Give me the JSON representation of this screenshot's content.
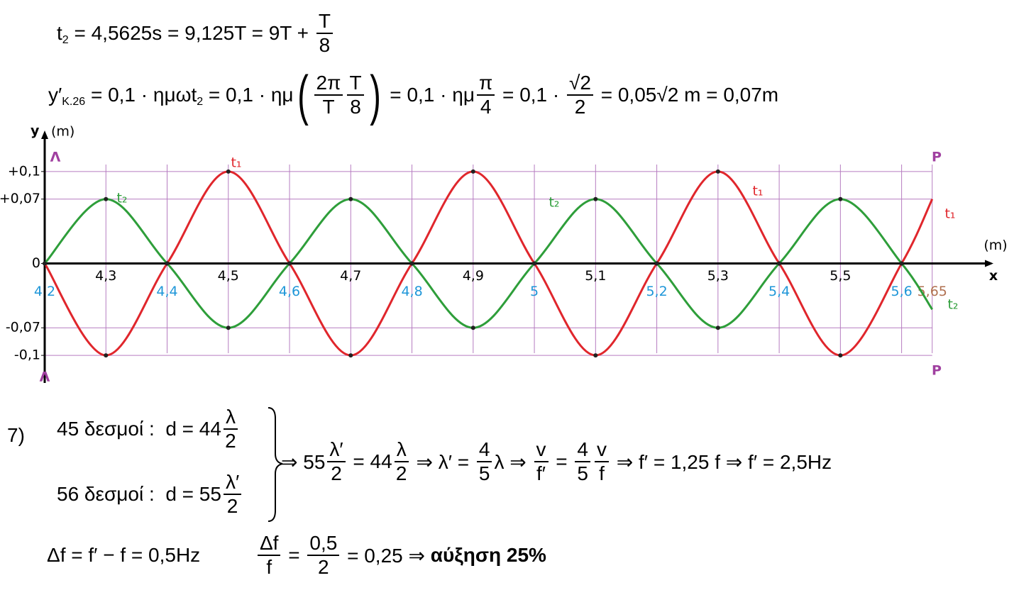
{
  "equations": [
    {
      "parts": [
        {
          "text": "t",
          "sub": "2"
        },
        {
          "text": " = 4,5625s = 9,125T = 9T + "
        },
        {
          "num": "T",
          "den": "8"
        }
      ]
    },
    {
      "parts": [
        {
          "text": "y′",
          "sub": "K.26"
        },
        {
          "text": " = 0,1 · ημωt",
          "sub": "2"
        },
        {
          "text": " = 0,1 · ημ"
        },
        {
          "paren": "("
        },
        {
          "num": "2π",
          "den": "T"
        },
        {
          "num": "T",
          "den": "8"
        },
        {
          "paren": ")"
        },
        {
          "text": " = 0,1 · ημ"
        },
        {
          "num": "π",
          "den": "4"
        },
        {
          "text": " = 0,1 · "
        },
        {
          "num": "√2",
          "den": "2"
        },
        {
          "text": " = 0,05√2 m = 0,07m"
        }
      ]
    }
  ],
  "problem_number": "7)",
  "system": {
    "rows": [
      {
        "parts": [
          {
            "text": "45 δεσμοί :  d = 44"
          },
          {
            "num": "λ",
            "den": "2"
          }
        ]
      },
      {
        "parts": [
          {
            "text": "56 δεσμοί :  d = 55"
          },
          {
            "num": "λ′",
            "den": "2"
          }
        ]
      }
    ],
    "result": {
      "parts": [
        {
          "text": "⇒ 55"
        },
        {
          "num": "λ′",
          "den": "2"
        },
        {
          "text": " = 44"
        },
        {
          "num": "λ",
          "den": "2"
        },
        {
          "text": " ⇒ λ′ = "
        },
        {
          "num": "4",
          "den": "5"
        },
        {
          "text": "λ ⇒ "
        },
        {
          "num": "v",
          "den": "f′"
        },
        {
          "text": " = "
        },
        {
          "num": "4",
          "den": "5"
        },
        {
          "num": "v",
          "den": "f"
        },
        {
          "text": " ⇒ f′ = 1,25 f ⇒ f′ = 2,5Hz"
        }
      ]
    }
  },
  "final": {
    "parts": [
      {
        "text": "Δf = f′ − f = 0,5Hz          "
      },
      {
        "num": "Δf",
        "den": "f"
      },
      {
        "text": " = "
      },
      {
        "num": "0,5",
        "den": "2"
      },
      {
        "text": " = 0,25 ⇒ "
      },
      {
        "bold": "αύξηση 25%"
      }
    ]
  },
  "chart_data": {
    "type": "line",
    "y_label": "y",
    "y_unit": "(m)",
    "x_label": "x",
    "x_unit": "(m)",
    "annotations": [
      "Λ",
      "Λ",
      "P",
      "P"
    ],
    "x": [
      4.2,
      4.3,
      4.4,
      4.5,
      4.6,
      4.7,
      4.8,
      4.9,
      5.0,
      5.1,
      5.2,
      5.3,
      5.4,
      5.5,
      5.6,
      5.65
    ],
    "series": [
      {
        "name": "t₁",
        "color": "#e0262c",
        "values": [
          0,
          -0.1,
          0,
          0.1,
          0,
          -0.1,
          0,
          0.1,
          0,
          -0.1,
          0,
          0.1,
          0,
          -0.1,
          0,
          0.07
        ]
      },
      {
        "name": "t₂",
        "color": "#2e9e3a",
        "values": [
          0,
          0.07,
          0,
          -0.07,
          0,
          0.07,
          0,
          -0.07,
          0,
          0.07,
          0,
          -0.07,
          0,
          0.07,
          0,
          -0.05
        ]
      }
    ],
    "xlim": [
      4.2,
      5.75
    ],
    "ylim": [
      -0.13,
      0.14
    ],
    "xticks": [
      {
        "value": 4.2,
        "label": "4,2"
      },
      {
        "value": 4.3,
        "label": "4,3"
      },
      {
        "value": 4.4,
        "label": "4,4"
      },
      {
        "value": 4.5,
        "label": "4,5"
      },
      {
        "value": 4.6,
        "label": "4,6"
      },
      {
        "value": 4.7,
        "label": "4,7"
      },
      {
        "value": 4.8,
        "label": "4,8"
      },
      {
        "value": 4.9,
        "label": "4,9"
      },
      5,
      {
        "value": 5.1,
        "label": "5,1"
      },
      {
        "value": 5.2,
        "label": "5,2"
      },
      {
        "value": 5.3,
        "label": "5,3"
      },
      {
        "value": 5.4,
        "label": "5,4"
      },
      {
        "value": 5.5,
        "label": "5,5"
      },
      {
        "value": 5.6,
        "label": "5,6"
      },
      {
        "value": 5.65,
        "label": "5,65"
      }
    ],
    "xtick_colors": [
      "#1e96d8",
      "#000000",
      "#1e96d8",
      "#000000",
      "#1e96d8",
      "#000000",
      "#1e96d8",
      "#000000",
      "#1e96d8",
      "#000000",
      "#1e96d8",
      "#000000",
      "#1e96d8",
      "#000000",
      "#1e96d8",
      "#b07050"
    ],
    "yticks": [
      {
        "value": 0.1,
        "label": "+0,1"
      },
      {
        "value": 0.07,
        "label": "+0,07"
      },
      0,
      {
        "value": -0.07,
        "label": "-0,07"
      },
      {
        "value": -0.1,
        "label": "-0,1"
      }
    ],
    "grid": true,
    "grid_color": "#b67cc0",
    "annotation_color": "#a040a0"
  }
}
